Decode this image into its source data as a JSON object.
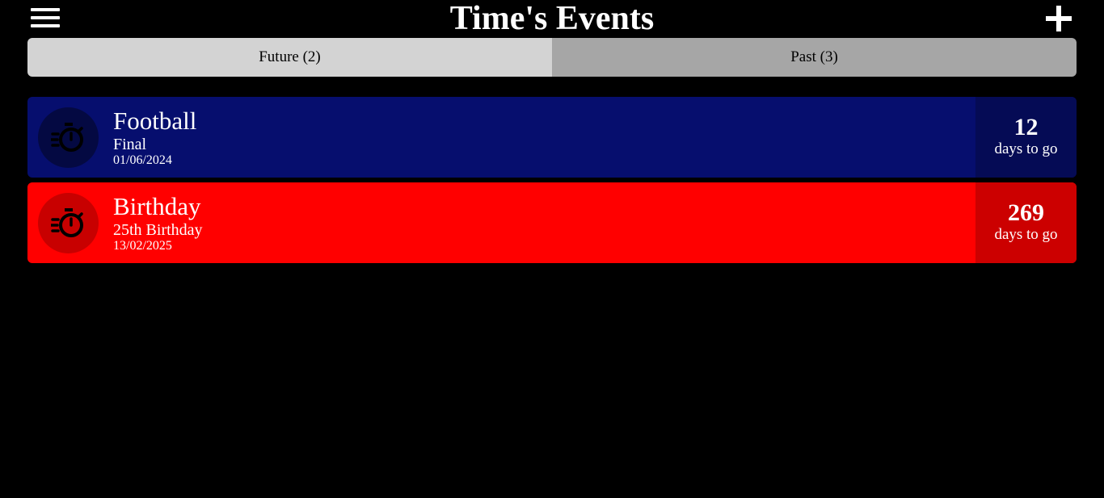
{
  "header": {
    "title": "Time's Events",
    "menu_icon": "hamburger-menu-icon",
    "add_icon": "plus-icon"
  },
  "tabs": [
    {
      "label": "Future (2)",
      "active": true
    },
    {
      "label": "Past (3)",
      "active": false
    }
  ],
  "events": [
    {
      "name": "Football",
      "subtitle": "Final",
      "date": "01/06/2024",
      "count": "12",
      "count_label": "days to go",
      "icon": "stopwatch-icon",
      "color": "#060e6e",
      "count_bg": "#050b55",
      "icon_bg": "#040942"
    },
    {
      "name": "Birthday",
      "subtitle": "25th Birthday",
      "date": "13/02/2025",
      "count": "269",
      "count_label": "days to go",
      "icon": "stopwatch-icon",
      "color": "#ff0000",
      "count_bg": "#cc0000",
      "icon_bg": "#c80000"
    }
  ]
}
